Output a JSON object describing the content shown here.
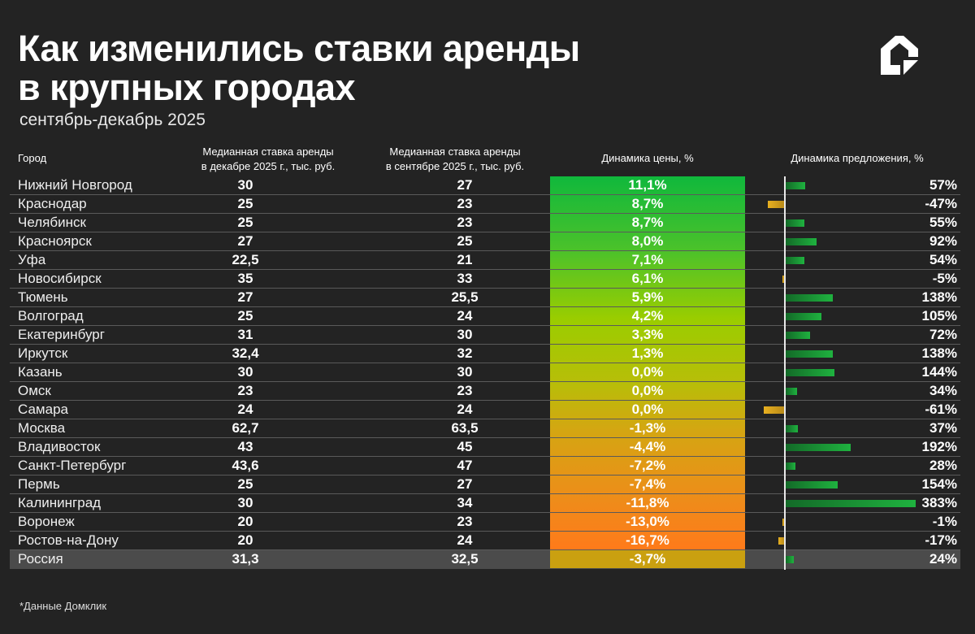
{
  "title_line1": "Как изменились ставки аренды",
  "title_line2": "в крупных городах",
  "subtitle": "сентябрь-декабрь 2025",
  "logo_icon": "domclick-house-logo",
  "footnote": "*Данные Домклик",
  "colors": {
    "background": "#232323",
    "positive_bar": "#1fb23f",
    "negative_bar": "#e8b020",
    "price_top": "#10b83c",
    "price_bottom": "#ff7a1a",
    "total_row": "#4b4b4b"
  },
  "chart_data": {
    "type": "table",
    "columns": [
      "Город",
      "Медианная ставка аренды в декабре 2025 г., тыс. руб.",
      "Медианная ставка аренды в сентябре 2025 г., тыс. руб.",
      "Динамика цены, %",
      "Динамика предложения, %"
    ],
    "header_lines": [
      [
        "Город"
      ],
      [
        "Медианная ставка аренды",
        "в декабре 2025 г., тыс. руб."
      ],
      [
        "Медианная ставка аренды",
        "в сентябре 2025 г., тыс. руб."
      ],
      [
        "Динамика цены, %"
      ],
      [
        "Динамика предложения, %"
      ]
    ],
    "rows": [
      {
        "city": "Нижний Новгород",
        "dec": "30",
        "sep": "27",
        "price": "11,1%",
        "supply": "57%",
        "supply_value": 57
      },
      {
        "city": "Краснодар",
        "dec": "25",
        "sep": "23",
        "price": "8,7%",
        "supply": "-47%",
        "supply_value": -47
      },
      {
        "city": "Челябинск",
        "dec": "25",
        "sep": "23",
        "price": "8,7%",
        "supply": "55%",
        "supply_value": 55
      },
      {
        "city": "Красноярск",
        "dec": "27",
        "sep": "25",
        "price": "8,0%",
        "supply": "92%",
        "supply_value": 92
      },
      {
        "city": "Уфа",
        "dec": "22,5",
        "sep": "21",
        "price": "7,1%",
        "supply": "54%",
        "supply_value": 54
      },
      {
        "city": "Новосибирск",
        "dec": "35",
        "sep": "33",
        "price": "6,1%",
        "supply": "-5%",
        "supply_value": -5
      },
      {
        "city": "Тюмень",
        "dec": "27",
        "sep": "25,5",
        "price": "5,9%",
        "supply": "138%",
        "supply_value": 138
      },
      {
        "city": "Волгоград",
        "dec": "25",
        "sep": "24",
        "price": "4,2%",
        "supply": "105%",
        "supply_value": 105
      },
      {
        "city": "Екатеринбург",
        "dec": "31",
        "sep": "30",
        "price": "3,3%",
        "supply": "72%",
        "supply_value": 72
      },
      {
        "city": "Иркутск",
        "dec": "32,4",
        "sep": "32",
        "price": "1,3%",
        "supply": "138%",
        "supply_value": 138
      },
      {
        "city": "Казань",
        "dec": "30",
        "sep": "30",
        "price": "0,0%",
        "supply": "144%",
        "supply_value": 144
      },
      {
        "city": "Омск",
        "dec": "23",
        "sep": "23",
        "price": "0,0%",
        "supply": "34%",
        "supply_value": 34
      },
      {
        "city": "Самара",
        "dec": "24",
        "sep": "24",
        "price": "0,0%",
        "supply": "-61%",
        "supply_value": -61
      },
      {
        "city": "Москва",
        "dec": "62,7",
        "sep": "63,5",
        "price": "-1,3%",
        "supply": "37%",
        "supply_value": 37
      },
      {
        "city": "Владивосток",
        "dec": "43",
        "sep": "45",
        "price": "-4,4%",
        "supply": "192%",
        "supply_value": 192
      },
      {
        "city": "Санкт-Петербург",
        "dec": "43,6",
        "sep": "47",
        "price": "-7,2%",
        "supply": "28%",
        "supply_value": 28
      },
      {
        "city": "Пермь",
        "dec": "25",
        "sep": "27",
        "price": "-7,4%",
        "supply": "154%",
        "supply_value": 154
      },
      {
        "city": "Калининград",
        "dec": "30",
        "sep": "34",
        "price": "-11,8%",
        "supply": "383%",
        "supply_value": 383
      },
      {
        "city": "Воронеж",
        "dec": "20",
        "sep": "23",
        "price": "-13,0%",
        "supply": "-1%",
        "supply_value": -1
      },
      {
        "city": "Ростов-на-Дону",
        "dec": "20",
        "sep": "24",
        "price": "-16,7%",
        "supply": "-17%",
        "supply_value": -17
      },
      {
        "city": "Россия",
        "dec": "31,3",
        "sep": "32,5",
        "price": "-3,7%",
        "supply": "24%",
        "supply_value": 24,
        "total": true
      }
    ]
  }
}
